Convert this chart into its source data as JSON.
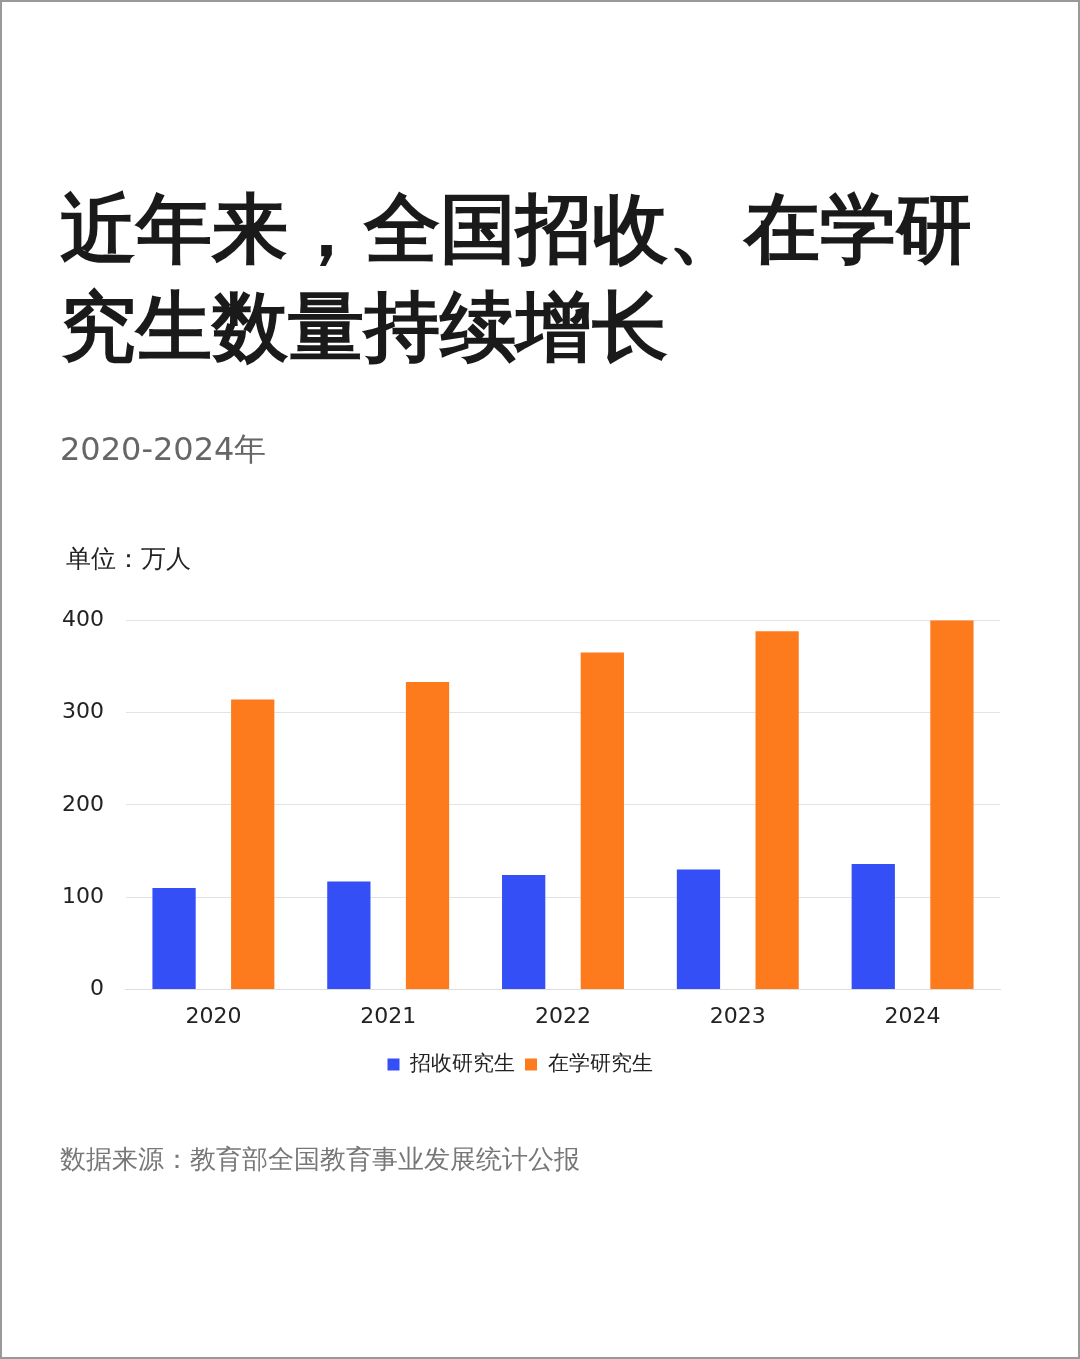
{
  "chart_data": {
    "type": "bar",
    "title": "近年来，全国招收、在学研究生数量持续增长",
    "subtitle": "2020-2024年",
    "ylabel": "单位：万人",
    "categories": [
      "2020",
      "2021",
      "2022",
      "2023",
      "2024"
    ],
    "series": [
      {
        "name": "招收研究生",
        "color": "#334ff5",
        "values": [
          110,
          117,
          124,
          130,
          136
        ]
      },
      {
        "name": "在学研究生",
        "color": "#fd7b1c",
        "values": [
          314,
          333,
          365,
          388,
          400
        ]
      }
    ],
    "ylim": [
      0,
      400
    ],
    "yticks": [
      0,
      100,
      200,
      300,
      400
    ],
    "grid": "y",
    "legend": "bottom",
    "annotations": [
      "数据来源：教育部全国教育事业发展统计公报"
    ]
  }
}
